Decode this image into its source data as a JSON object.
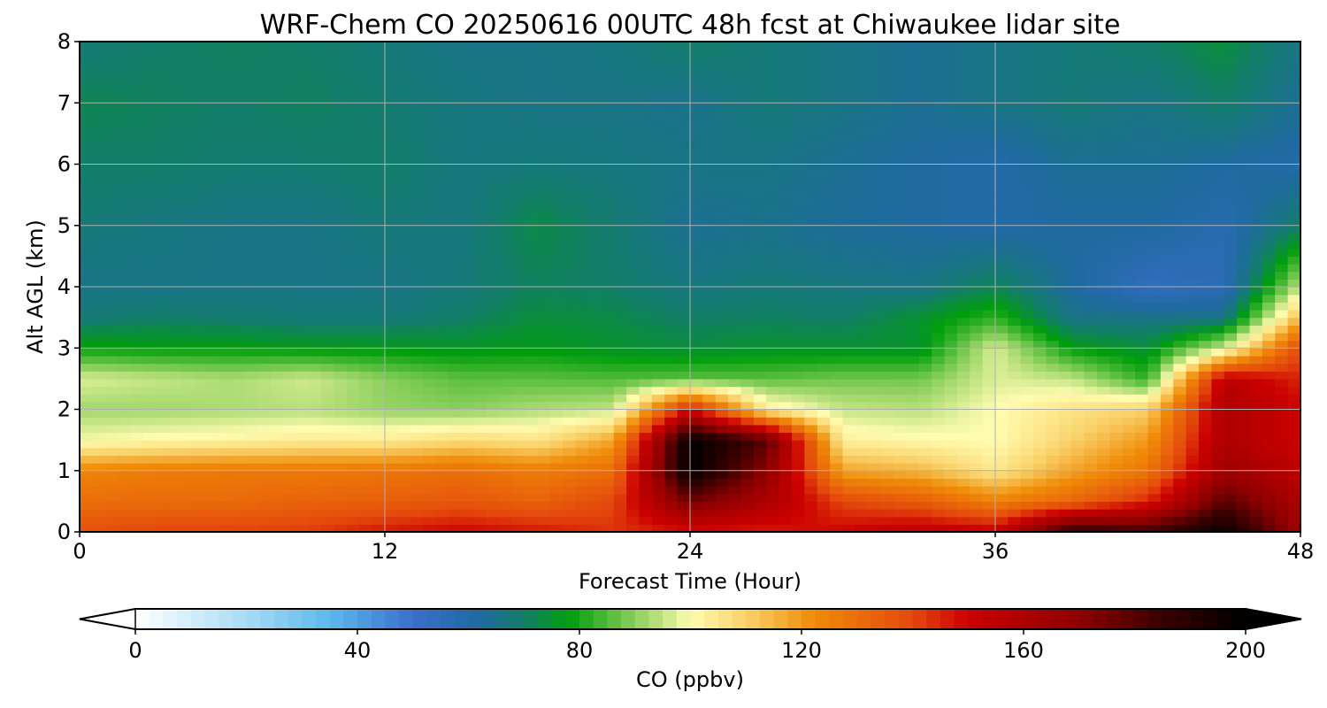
{
  "chart_data": {
    "type": "heatmap",
    "title": "WRF-Chem CO  20250616 00UTC 48h fcst at Chiwaukee lidar site",
    "xlabel": "Forecast Time (Hour)",
    "ylabel": "Alt AGL (km)",
    "xlim": [
      0,
      48
    ],
    "ylim": [
      0,
      8
    ],
    "x_ticks": [
      "0",
      "12",
      "24",
      "36",
      "48"
    ],
    "y_ticks": [
      "0",
      "1",
      "2",
      "3",
      "4",
      "5",
      "6",
      "7",
      "8"
    ],
    "grid": true,
    "x": [
      0,
      3,
      6,
      9,
      12,
      15,
      18,
      21,
      24,
      27,
      30,
      33,
      36,
      39,
      42,
      45,
      48
    ],
    "y": [
      0,
      0.5,
      1.0,
      1.5,
      2.0,
      2.5,
      3.0,
      3.5,
      4.0,
      5.0,
      6.0,
      7.0,
      8.0
    ],
    "z": [
      [
        138,
        140,
        141,
        142,
        147,
        150,
        147,
        143,
        147,
        146,
        150,
        155,
        152,
        190,
        185,
        198,
        165
      ],
      [
        130,
        131,
        131,
        133,
        134,
        136,
        133,
        140,
        175,
        160,
        140,
        135,
        125,
        132,
        145,
        180,
        160
      ],
      [
        124,
        126,
        127,
        127,
        128,
        130,
        126,
        130,
        200,
        170,
        118,
        115,
        105,
        118,
        128,
        165,
        155
      ],
      [
        99,
        101,
        102,
        104,
        104,
        108,
        106,
        118,
        200,
        180,
        103,
        101,
        100,
        110,
        120,
        160,
        150
      ],
      [
        92,
        92,
        93,
        94,
        91,
        90,
        93,
        95,
        150,
        104,
        95,
        94,
        100,
        106,
        110,
        160,
        150
      ],
      [
        97,
        95,
        93,
        96,
        90,
        86,
        86,
        85,
        86,
        86,
        88,
        88,
        97,
        95,
        82,
        155,
        145
      ],
      [
        79,
        78,
        78,
        77,
        77,
        76,
        77,
        75,
        74,
        75,
        75,
        75,
        97,
        78,
        74,
        96,
        140
      ],
      [
        68,
        70,
        69,
        68,
        68,
        70,
        74,
        73,
        70,
        71,
        70,
        75,
        82,
        66,
        66,
        66,
        115
      ],
      [
        66,
        66,
        66,
        66,
        66,
        68,
        71,
        70,
        67,
        68,
        67,
        66,
        72,
        62,
        54,
        56,
        95
      ],
      [
        68,
        67,
        66,
        66,
        68,
        67,
        73,
        69,
        64,
        65,
        63,
        62,
        60,
        62,
        62,
        58,
        70
      ],
      [
        70,
        70,
        69,
        69,
        70,
        67,
        68,
        67,
        66,
        66,
        64,
        62,
        60,
        64,
        64,
        62,
        60
      ],
      [
        72,
        71,
        70,
        71,
        69,
        67,
        66,
        66,
        65,
        68,
        66,
        64,
        66,
        68,
        66,
        70,
        64
      ],
      [
        68,
        70,
        71,
        70,
        68,
        66,
        66,
        67,
        70,
        68,
        66,
        64,
        66,
        68,
        70,
        74,
        66
      ]
    ],
    "colorbar": {
      "label": "CO  (ppbv)",
      "range": [
        0,
        200
      ],
      "ticks": [
        "0",
        "40",
        "80",
        "120",
        "160",
        "200"
      ],
      "extend": "both",
      "colors": {
        "0": "#ffffff",
        "20": "#a8dcf5",
        "35": "#5cb8ec",
        "50": "#3a6fcc",
        "62": "#1f6aa0",
        "70": "#137e6a",
        "78": "#009e0c",
        "86": "#5cbf3e",
        "94": "#b9e07c",
        "100": "#fffcb0",
        "110": "#fad26a",
        "122": "#f08c08",
        "140": "#e4480c",
        "150": "#cc0000",
        "170": "#8e0000",
        "185": "#3a0000",
        "200": "#000000"
      }
    }
  }
}
